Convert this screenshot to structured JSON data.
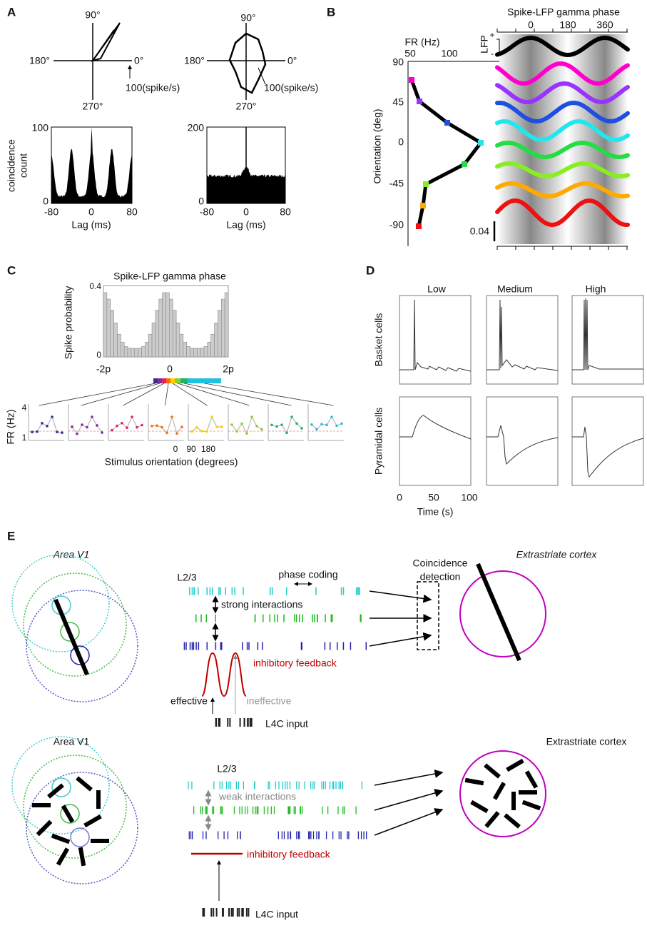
{
  "panel_a": {
    "label": "A",
    "polar_left": {
      "top": "90°",
      "left": "180°",
      "right": "0°",
      "bottom": "270°",
      "scale": "100(spike/s)"
    },
    "polar_right": {
      "top": "90°",
      "left": "180°",
      "right": "0°",
      "bottom": "270°",
      "scale": "100(spike/s)"
    },
    "y_label": [
      "coincidence",
      "count"
    ],
    "hist_left": {
      "y_ticks": [
        "100",
        "0"
      ],
      "x_ticks": [
        "-80",
        "0",
        "80"
      ],
      "x_label": "Lag (ms)"
    },
    "hist_right": {
      "y_ticks": [
        "200",
        "0"
      ],
      "x_ticks": [
        "-80",
        "0",
        "80"
      ],
      "x_label": "Lag (ms)"
    }
  },
  "panel_b": {
    "label": "B",
    "x_label": "FR (Hz)",
    "x_ticks": [
      "50",
      "100"
    ],
    "y_ticks": [
      "90",
      "45",
      "0",
      "-45",
      "-90"
    ],
    "y_label": "Orientation (deg)",
    "phase_title": "Spike-LFP gamma phase",
    "phase_ticks": [
      "0",
      "180",
      "360"
    ],
    "lfp_label": "LFP",
    "lfp_signs": [
      "+",
      "-"
    ],
    "scale_bar": "0.04"
  },
  "panel_c": {
    "label": "C",
    "title": "Spike-LFP gamma phase",
    "y_label": "Spike probability",
    "y_ticks": [
      "0.4",
      "0"
    ],
    "x_ticks": [
      "-2p",
      "0",
      "2p"
    ],
    "fr_label": "FR (Hz)",
    "fr_ticks": [
      "4",
      "1"
    ],
    "orientation_ticks": [
      "0",
      "90",
      "180"
    ],
    "x_label": "Stimulus orientation (degrees)"
  },
  "panel_d": {
    "label": "D",
    "columns": [
      "Low",
      "Medium",
      "High"
    ],
    "rows": [
      "Basket cells",
      "Pyramidal cells"
    ],
    "x_ticks": [
      "0",
      "50",
      "100"
    ],
    "x_label": "Time (s)"
  },
  "panel_e": {
    "label": "E",
    "top": {
      "area": "Area V1",
      "layer": "L2/3",
      "phase_coding": "phase coding",
      "interactions": "strong interactions",
      "feedback": "inhibitory feedback",
      "effective": "effective",
      "ineffective": "ineffective",
      "input": "L4C input",
      "detection": [
        "Coincidence",
        "detection"
      ],
      "target": "Extrastriate cortex"
    },
    "bottom": {
      "area": "Area V1",
      "layer": "L2/3",
      "interactions": "weak interactions",
      "feedback": "inhibitory feedback",
      "input": "L4C input",
      "target": "Extrastriate cortex"
    }
  }
}
